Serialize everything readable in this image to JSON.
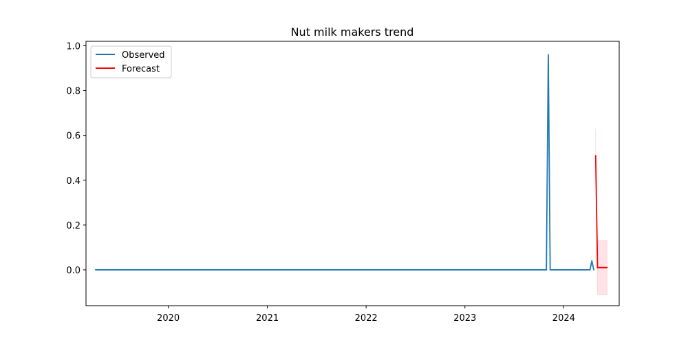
{
  "chart_data": {
    "type": "line",
    "title": "Nut milk makers trend",
    "xlabel": "",
    "ylabel": "",
    "xlim": [
      "2019-03-03",
      "2024-07-24"
    ],
    "ylim": [
      -0.16,
      1.02
    ],
    "x_ticks": [
      {
        "date": "2020-01-01",
        "label": "2020"
      },
      {
        "date": "2021-01-01",
        "label": "2021"
      },
      {
        "date": "2022-01-01",
        "label": "2022"
      },
      {
        "date": "2023-01-01",
        "label": "2023"
      },
      {
        "date": "2024-01-01",
        "label": "2024"
      }
    ],
    "y_ticks": [
      {
        "value": 0.0,
        "label": "0.0"
      },
      {
        "value": 0.2,
        "label": "0.2"
      },
      {
        "value": 0.4,
        "label": "0.4"
      },
      {
        "value": 0.6,
        "label": "0.6"
      },
      {
        "value": 0.8,
        "label": "0.8"
      },
      {
        "value": 1.0,
        "label": "1.0"
      }
    ],
    "grid": false,
    "legend_position": "top-left",
    "series": [
      {
        "name": "Observed",
        "color": "#1f77b4",
        "points": [
          {
            "x": "2019-04-07",
            "y": 0.0
          },
          {
            "x": "2023-10-29",
            "y": 0.0
          },
          {
            "x": "2023-11-05",
            "y": 0.96
          },
          {
            "x": "2023-11-12",
            "y": 0.0
          },
          {
            "x": "2024-04-07",
            "y": 0.0
          },
          {
            "x": "2024-04-14",
            "y": 0.04
          },
          {
            "x": "2024-04-21",
            "y": 0.0
          }
        ]
      },
      {
        "name": "Forecast",
        "color": "#ff0000",
        "points": [
          {
            "x": "2024-04-28",
            "y": 0.51
          },
          {
            "x": "2024-05-05",
            "y": 0.01
          },
          {
            "x": "2024-05-12",
            "y": 0.01
          },
          {
            "x": "2024-05-19",
            "y": 0.01
          },
          {
            "x": "2024-05-26",
            "y": 0.01
          },
          {
            "x": "2024-06-02",
            "y": 0.01
          },
          {
            "x": "2024-06-09",
            "y": 0.01
          }
        ],
        "interval": {
          "color": "#ffc0cb",
          "bands": [
            {
              "x": [
                "2024-04-28",
                "2024-04-28"
              ],
              "lower": 0.4,
              "upper": 0.63
            },
            {
              "x": [
                "2024-05-05",
                "2024-06-09"
              ],
              "lower": -0.11,
              "upper": 0.13
            }
          ]
        }
      }
    ]
  }
}
